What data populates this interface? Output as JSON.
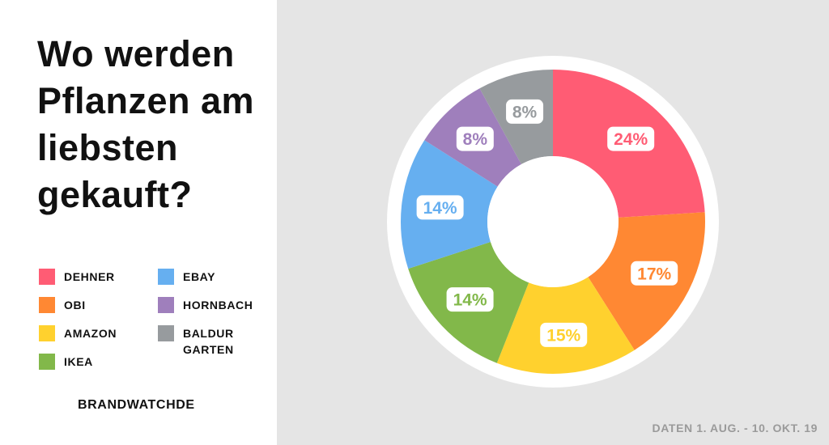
{
  "title": "Wo werden Pflanzen am liebsten gekauft?",
  "source": "BRANDWATCHDE",
  "date_note": "DATEN 1. AUG. - 10. OKT. 19",
  "chart_data": {
    "type": "pie",
    "donut": true,
    "title": "Wo werden Pflanzen am liebsten gekauft?",
    "legend_position": "left",
    "slices": [
      {
        "name": "DEHNER",
        "value": 24,
        "label": "24%",
        "color": "#ff5c74"
      },
      {
        "name": "OBI",
        "value": 17,
        "label": "17%",
        "color": "#ff8833"
      },
      {
        "name": "AMAZON",
        "value": 15,
        "label": "15%",
        "color": "#ffd12e"
      },
      {
        "name": "IKEA",
        "value": 14,
        "label": "14%",
        "color": "#82b84a"
      },
      {
        "name": "EBAY",
        "value": 14,
        "label": "14%",
        "color": "#66aff0"
      },
      {
        "name": "HORNBACH",
        "value": 8,
        "label": "8%",
        "color": "#9f7fbc"
      },
      {
        "name": "BALDUR\nGARTEN",
        "value": 8,
        "label": "8%",
        "color": "#979b9e"
      }
    ]
  }
}
